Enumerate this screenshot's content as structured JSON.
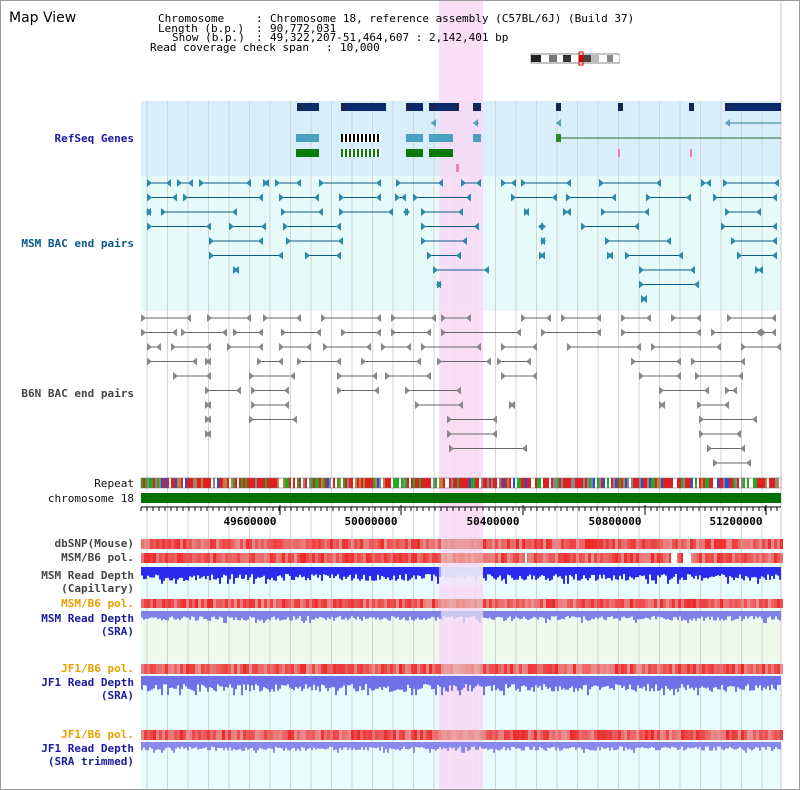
{
  "page": {
    "title": "Map View"
  },
  "info": {
    "chromosome_label": "Chromosome",
    "chromosome_value": "Chromosome 18, reference assembly (C57BL/6J) (Build 37)",
    "length_label": "Length (b.p.)",
    "length_value": "90,772,031",
    "show_label": "Show (b.p.)",
    "show_value": "49,322,207-51,464,607 : 2,142,401 bp",
    "coverage_label": "Read coverage check span",
    "coverage_value": "10,000"
  },
  "tracks": {
    "refseq": "RefSeq Genes",
    "msm_bac": "MSM BAC end pairs",
    "b6n_bac": "B6N BAC end pairs",
    "repeat": "Repeat",
    "chromosome": "chromosome 18",
    "dbsnp": "dbSNP(Mouse)",
    "msm_b6_pol_1": "MSM/B6 pol.",
    "msm_depth_cap_1": "MSM Read Depth",
    "msm_depth_cap_2": "(Capillary)",
    "msm_b6_pol_2": "MSM/B6 pol.",
    "msm_depth_sra_1": "MSM Read Depth",
    "msm_depth_sra_2": "(SRA)",
    "jf1_b6_pol_1": "JF1/B6 pol.",
    "jf1_depth_sra_1": "JF1 Read Depth",
    "jf1_depth_sra_2": "(SRA)",
    "jf1_b6_pol_2": "JF1/B6 pol.",
    "jf1_depth_trim_1": "JF1 Read Depth",
    "jf1_depth_trim_2": "(SRA trimmed)"
  },
  "axis": {
    "ticks": [
      "49600000",
      "50000000",
      "50400000",
      "50800000",
      "51200000"
    ]
  },
  "colors": {
    "navy": "#0a2a6a",
    "refseq_bg": "#d8eefa",
    "bac_bg": "#e6fafa",
    "highlight": "#f8d8f4",
    "chrom": "#007000",
    "depth": "#2b2bee"
  }
}
